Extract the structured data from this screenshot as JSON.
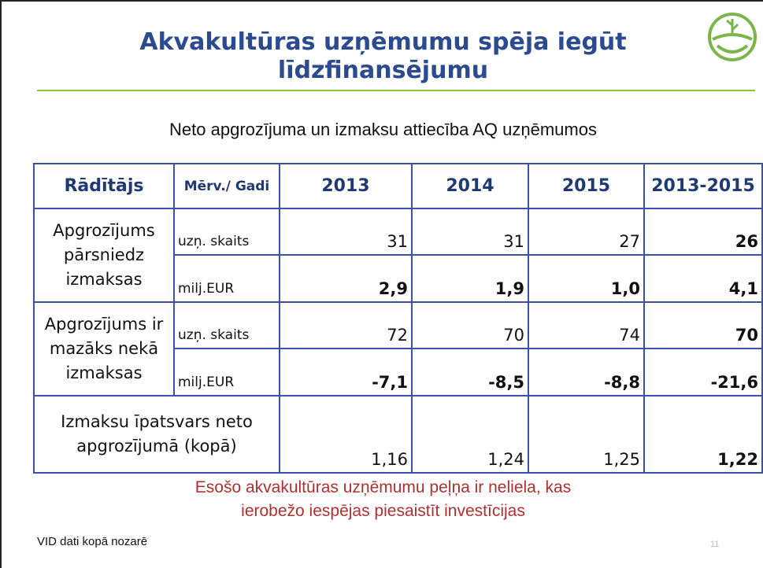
{
  "header": {
    "title_lines": [
      "Akvakultūras uzņēmumu spēja iegūt",
      "līdzfinansējumu"
    ]
  },
  "subtitle": "Neto apgrozījuma un izmaksu attiecība AQ uzņēmumos",
  "table": {
    "header": [
      "Rādītājs",
      "Mērv./ Gadi",
      "2013",
      "2014",
      "2015",
      "2013-2015"
    ],
    "groups": [
      {
        "label": "Apgrozījums pārsniedz izmaksas",
        "rows": [
          [
            "uzņ. skaits",
            "31",
            "31",
            "27",
            "26"
          ],
          [
            "milj.EUR",
            "2,9",
            "1,9",
            "1,0",
            "4,1"
          ]
        ]
      },
      {
        "label": "Apgrozījums ir mazāks nekā izmaksas",
        "rows": [
          [
            "uzņ. skaits",
            "72",
            "70",
            "74",
            "70"
          ],
          [
            "milj.EUR",
            "-7,1",
            "-8,5",
            "-8,8",
            "-21,6"
          ]
        ]
      }
    ],
    "total": {
      "label": "Izmaksu īpatsvars neto apgrozījumā (kopā)",
      "values": [
        "1,16",
        "1,24",
        "1,25",
        "1,22"
      ]
    }
  },
  "conclusion_lines": [
    "Esošo akvakultūras uzņēmumu peļņa ir neliela, kas",
    "ierobežo iespējas piesaistīt investīcijas"
  ],
  "source": "VID dati kopā nozarē",
  "page_number": "11"
}
